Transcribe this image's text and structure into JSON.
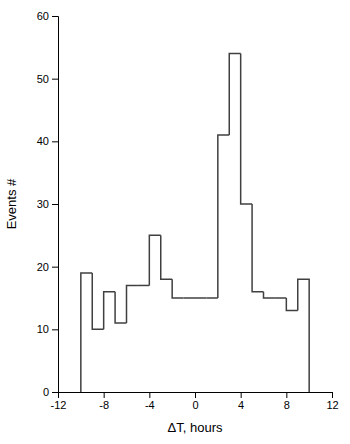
{
  "chart_data": {
    "type": "histogram",
    "bins": [
      -10,
      -9,
      -8,
      -7,
      -6,
      -5,
      -4,
      -3,
      -2,
      -1,
      0,
      1,
      2,
      3,
      4,
      5,
      6,
      7,
      8,
      9,
      10
    ],
    "values": [
      19,
      10,
      16,
      11,
      17,
      17,
      25,
      18,
      15,
      15,
      15,
      15,
      41,
      54,
      30,
      16,
      15,
      15,
      13,
      18
    ],
    "xlabel": "ΔT, hours",
    "ylabel": "Events #",
    "xlim": [
      -12,
      12
    ],
    "ylim": [
      0,
      60
    ],
    "xticks": [
      -12,
      -8,
      -4,
      0,
      4,
      8,
      12
    ],
    "yticks": [
      0,
      10,
      20,
      30,
      40,
      50,
      60
    ],
    "color": "#404040",
    "grid": false
  }
}
